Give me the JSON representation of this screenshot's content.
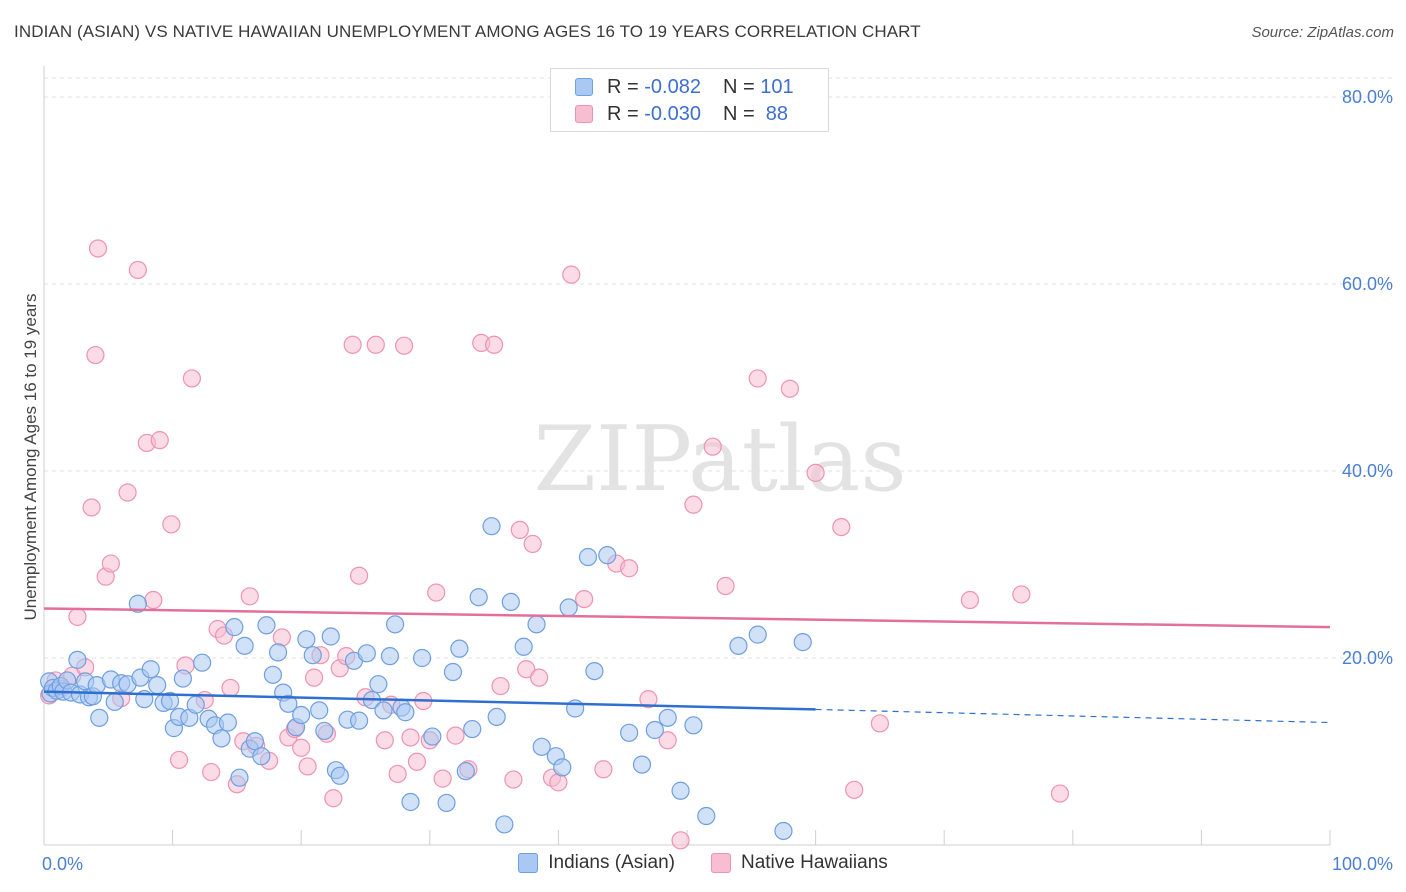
{
  "title": "INDIAN (ASIAN) VS NATIVE HAWAIIAN UNEMPLOYMENT AMONG AGES 16 TO 19 YEARS CORRELATION CHART",
  "source": "Source: ZipAtlas.com",
  "watermark": "ZIPatlas",
  "legend": {
    "r_label": "R =",
    "n_label": "N =",
    "rows": [
      {
        "r": "-0.082",
        "n": "101"
      },
      {
        "r": "-0.030",
        "n": "88"
      }
    ]
  },
  "colors": {
    "blue_fill": "#a9c8f2",
    "blue_stroke": "#6f9fe0",
    "blue_line": "#2e6fd0",
    "pink_fill": "#f7bdd0",
    "pink_stroke": "#ee93b3",
    "pink_line": "#e2709a",
    "tick": "#4a7fd1"
  },
  "chart_data": {
    "type": "scatter",
    "ylabel": "Unemployment Among Ages 16 to 19 years",
    "xlim": [
      0,
      100
    ],
    "ylim": [
      0,
      80
    ],
    "x_tick_labels": [
      {
        "value": 0,
        "label": "0.0%"
      },
      {
        "value": 100,
        "label": "100.0%"
      }
    ],
    "y_tick_labels": [
      {
        "value": 20,
        "label": "20.0%"
      },
      {
        "value": 40,
        "label": "40.0%"
      },
      {
        "value": 60,
        "label": "60.0%"
      },
      {
        "value": 80,
        "label": "80.0%"
      }
    ],
    "grid": "horizontal dashed",
    "legend_position": "top-center",
    "series": [
      {
        "name": "Indians (Asian)",
        "color": "#a9c8f2",
        "points": [
          [
            0.4,
            17.5
          ],
          [
            0.5,
            16.2
          ],
          [
            0.7,
            16.8
          ],
          [
            1.0,
            16.5
          ],
          [
            1.3,
            17.0
          ],
          [
            1.5,
            16.4
          ],
          [
            1.8,
            17.6
          ],
          [
            2.1,
            16.3
          ],
          [
            2.6,
            19.8
          ],
          [
            2.8,
            16.1
          ],
          [
            3.2,
            17.5
          ],
          [
            3.5,
            15.8
          ],
          [
            3.8,
            15.9
          ],
          [
            4.1,
            17.1
          ],
          [
            4.3,
            13.6
          ],
          [
            5.2,
            17.7
          ],
          [
            5.5,
            15.3
          ],
          [
            6.0,
            17.3
          ],
          [
            6.5,
            17.2
          ],
          [
            7.3,
            25.8
          ],
          [
            7.5,
            17.9
          ],
          [
            7.8,
            15.6
          ],
          [
            8.3,
            18.8
          ],
          [
            8.8,
            17.1
          ],
          [
            9.3,
            15.2
          ],
          [
            9.8,
            15.4
          ],
          [
            10.1,
            12.5
          ],
          [
            10.5,
            13.7
          ],
          [
            10.8,
            17.8
          ],
          [
            11.3,
            13.6
          ],
          [
            11.8,
            15.0
          ],
          [
            12.3,
            19.5
          ],
          [
            12.8,
            13.5
          ],
          [
            13.3,
            12.8
          ],
          [
            13.8,
            11.4
          ],
          [
            14.3,
            13.1
          ],
          [
            14.8,
            23.3
          ],
          [
            15.2,
            7.2
          ],
          [
            15.6,
            21.3
          ],
          [
            16.0,
            10.3
          ],
          [
            16.4,
            11.1
          ],
          [
            16.9,
            9.5
          ],
          [
            17.3,
            23.5
          ],
          [
            17.8,
            18.2
          ],
          [
            18.2,
            20.6
          ],
          [
            18.6,
            16.3
          ],
          [
            19.0,
            15.1
          ],
          [
            19.6,
            12.6
          ],
          [
            20.0,
            13.9
          ],
          [
            20.4,
            22.0
          ],
          [
            20.9,
            20.3
          ],
          [
            21.4,
            14.4
          ],
          [
            21.8,
            12.2
          ],
          [
            22.3,
            22.3
          ],
          [
            22.7,
            8.0
          ],
          [
            23.0,
            7.4
          ],
          [
            23.6,
            13.4
          ],
          [
            24.1,
            19.7
          ],
          [
            24.5,
            13.3
          ],
          [
            25.1,
            20.5
          ],
          [
            25.5,
            15.5
          ],
          [
            26.0,
            17.2
          ],
          [
            26.4,
            14.4
          ],
          [
            26.9,
            20.2
          ],
          [
            27.3,
            23.6
          ],
          [
            27.8,
            14.7
          ],
          [
            28.1,
            14.2
          ],
          [
            28.5,
            4.6
          ],
          [
            29.4,
            20.0
          ],
          [
            30.2,
            11.6
          ],
          [
            31.3,
            4.5
          ],
          [
            31.8,
            18.5
          ],
          [
            32.3,
            21.0
          ],
          [
            32.8,
            7.9
          ],
          [
            33.3,
            12.4
          ],
          [
            33.8,
            26.5
          ],
          [
            34.8,
            34.1
          ],
          [
            35.2,
            13.7
          ],
          [
            35.8,
            2.2
          ],
          [
            36.3,
            26.0
          ],
          [
            37.3,
            21.2
          ],
          [
            38.3,
            23.6
          ],
          [
            38.7,
            10.5
          ],
          [
            39.8,
            9.5
          ],
          [
            40.3,
            8.3
          ],
          [
            40.8,
            25.4
          ],
          [
            41.3,
            14.6
          ],
          [
            42.3,
            30.8
          ],
          [
            42.8,
            18.6
          ],
          [
            43.8,
            31.0
          ],
          [
            45.5,
            12.0
          ],
          [
            46.5,
            8.6
          ],
          [
            47.5,
            12.3
          ],
          [
            48.5,
            13.6
          ],
          [
            49.5,
            5.8
          ],
          [
            50.5,
            12.8
          ],
          [
            51.5,
            3.1
          ],
          [
            54.0,
            21.3
          ],
          [
            55.5,
            22.5
          ],
          [
            57.5,
            1.5
          ],
          [
            59.0,
            21.7
          ]
        ]
      },
      {
        "name": "Native Hawaiians",
        "color": "#f7bdd0",
        "points": [
          [
            0.4,
            16.0
          ],
          [
            0.9,
            17.6
          ],
          [
            1.3,
            16.7
          ],
          [
            2.2,
            18.1
          ],
          [
            2.6,
            24.4
          ],
          [
            3.2,
            19.0
          ],
          [
            3.7,
            36.1
          ],
          [
            4.0,
            52.4
          ],
          [
            4.2,
            63.8
          ],
          [
            4.8,
            28.7
          ],
          [
            5.2,
            30.1
          ],
          [
            6.0,
            15.7
          ],
          [
            6.5,
            37.7
          ],
          [
            7.3,
            61.5
          ],
          [
            8.0,
            43.0
          ],
          [
            8.5,
            26.2
          ],
          [
            9.0,
            43.3
          ],
          [
            9.9,
            34.3
          ],
          [
            10.5,
            9.1
          ],
          [
            11.0,
            19.2
          ],
          [
            11.5,
            49.9
          ],
          [
            12.5,
            15.5
          ],
          [
            13.0,
            7.8
          ],
          [
            13.5,
            23.1
          ],
          [
            14.0,
            22.4
          ],
          [
            14.5,
            16.8
          ],
          [
            15.0,
            6.5
          ],
          [
            15.5,
            11.1
          ],
          [
            16.0,
            26.6
          ],
          [
            16.5,
            10.6
          ],
          [
            17.5,
            9.0
          ],
          [
            18.5,
            22.2
          ],
          [
            19.0,
            11.5
          ],
          [
            19.5,
            12.4
          ],
          [
            20.0,
            10.4
          ],
          [
            20.5,
            8.4
          ],
          [
            21.0,
            17.9
          ],
          [
            21.5,
            20.3
          ],
          [
            22.0,
            11.9
          ],
          [
            22.5,
            5.0
          ],
          [
            23.0,
            18.9
          ],
          [
            23.5,
            20.2
          ],
          [
            24.0,
            53.5
          ],
          [
            24.5,
            28.8
          ],
          [
            25.0,
            15.8
          ],
          [
            25.8,
            53.5
          ],
          [
            26.5,
            11.2
          ],
          [
            27.0,
            15.0
          ],
          [
            27.5,
            7.6
          ],
          [
            28.0,
            53.4
          ],
          [
            28.5,
            11.5
          ],
          [
            29.0,
            8.9
          ],
          [
            29.5,
            15.4
          ],
          [
            30.0,
            11.2
          ],
          [
            30.5,
            27.0
          ],
          [
            31.0,
            7.1
          ],
          [
            32.0,
            11.7
          ],
          [
            33.0,
            8.1
          ],
          [
            34.0,
            53.7
          ],
          [
            35.0,
            53.5
          ],
          [
            35.5,
            17.0
          ],
          [
            36.5,
            7.0
          ],
          [
            37.0,
            33.7
          ],
          [
            37.5,
            18.8
          ],
          [
            38.0,
            32.2
          ],
          [
            38.5,
            17.9
          ],
          [
            39.5,
            7.2
          ],
          [
            40.0,
            6.7
          ],
          [
            41.0,
            61.0
          ],
          [
            42.0,
            26.3
          ],
          [
            43.5,
            8.1
          ],
          [
            44.5,
            30.1
          ],
          [
            45.5,
            29.6
          ],
          [
            47.0,
            15.6
          ],
          [
            48.5,
            11.2
          ],
          [
            49.5,
            0.5
          ],
          [
            50.5,
            36.4
          ],
          [
            52.0,
            42.6
          ],
          [
            53.0,
            27.7
          ],
          [
            55.5,
            49.9
          ],
          [
            58.0,
            48.8
          ],
          [
            60.0,
            39.8
          ],
          [
            62.0,
            34.0
          ],
          [
            63.0,
            5.9
          ],
          [
            65.0,
            13.0
          ],
          [
            72.0,
            26.2
          ],
          [
            76.0,
            26.8
          ],
          [
            79.0,
            5.5
          ]
        ]
      }
    ],
    "trend_lines": [
      {
        "series": "Indians (Asian)",
        "x_start": 0,
        "y_start": 16.4,
        "x_end": 60,
        "y_end": 14.5,
        "dashed_to_x": 100,
        "dashed_to_y": 13.1
      },
      {
        "series": "Native Hawaiians",
        "x_start": 0,
        "y_start": 25.3,
        "x_end": 100,
        "y_end": 23.3
      }
    ]
  }
}
